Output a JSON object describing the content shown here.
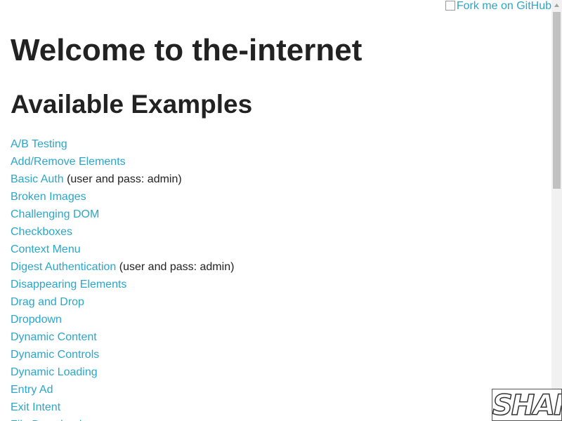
{
  "fork_banner": {
    "alt": "Fork me on GitHub"
  },
  "header": {
    "title": "Welcome to the-internet"
  },
  "content": {
    "subtitle": "Available Examples",
    "links": [
      {
        "label": "A/B Testing"
      },
      {
        "label": "Add/Remove Elements"
      },
      {
        "label": "Basic Auth",
        "note": "(user and pass: admin)"
      },
      {
        "label": "Broken Images"
      },
      {
        "label": "Challenging DOM"
      },
      {
        "label": "Checkboxes"
      },
      {
        "label": "Context Menu"
      },
      {
        "label": "Digest Authentication",
        "note": "(user and pass: admin)"
      },
      {
        "label": "Disappearing Elements"
      },
      {
        "label": "Drag and Drop"
      },
      {
        "label": "Dropdown"
      },
      {
        "label": "Dynamic Content"
      },
      {
        "label": "Dynamic Controls"
      },
      {
        "label": "Dynamic Loading"
      },
      {
        "label": "Entry Ad"
      },
      {
        "label": "Exit Intent"
      },
      {
        "label": "File Download"
      }
    ]
  },
  "badge": {
    "text": "SHAFT"
  }
}
